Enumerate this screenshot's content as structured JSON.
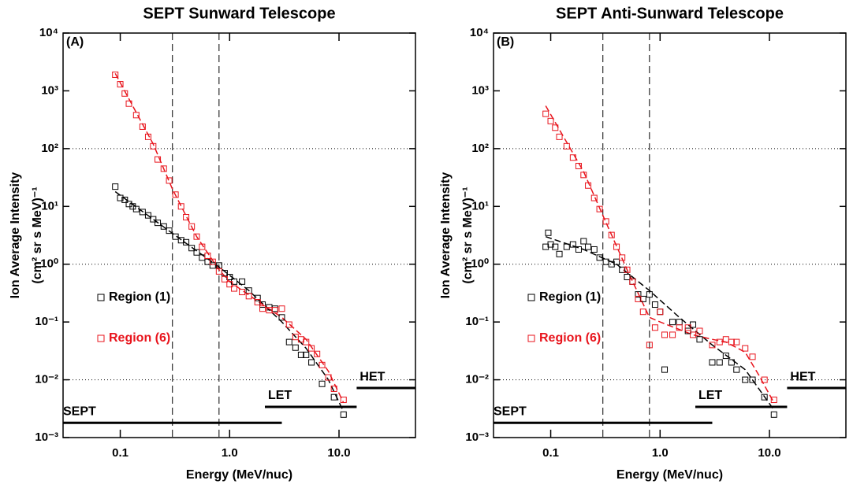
{
  "chart_data": [
    {
      "type": "scatter",
      "title": "SEPT Sunward Telescope",
      "panel_label": "(A)",
      "xlabel": "Energy (MeV/nuc)",
      "ylabel": [
        "Ion Average Intensity",
        "(cm² sr s MeV)⁻¹"
      ],
      "log_x": true,
      "log_y": true,
      "xlim": [
        0.03,
        50
      ],
      "ylim": [
        0.001,
        10000
      ],
      "xticks": [
        0.1,
        {
          "value": 1,
          "label": "1.0"
        },
        {
          "value": 10,
          "label": "10.0"
        }
      ],
      "yticks": [
        {
          "value": 0.001,
          "label": "10⁻³"
        },
        {
          "value": 0.01,
          "label": "10⁻²"
        },
        {
          "value": 0.1,
          "label": "10⁻¹"
        },
        {
          "value": 1,
          "label": "10⁰"
        },
        {
          "value": 10,
          "label": "10¹"
        },
        {
          "value": 100,
          "label": "10²"
        },
        {
          "value": 1000,
          "label": "10³"
        },
        {
          "value": 10000,
          "label": "10⁴"
        }
      ],
      "grid_lines": [
        0.01,
        1,
        100
      ],
      "reference_lines": [
        0.3,
        0.8
      ],
      "ranges": [
        {
          "label": "SEPT",
          "x": [
            0.03,
            3.0
          ],
          "y": 0.0018
        },
        {
          "label": "LET",
          "x": [
            2.1,
            14.5
          ],
          "y": 0.0034
        },
        {
          "label": "HET",
          "x": [
            14.5,
            50
          ],
          "y": 0.0072
        }
      ],
      "series": [
        {
          "name": "Region (1)",
          "color": "#000000",
          "x": [
            0.09,
            0.1,
            0.11,
            0.12,
            0.13,
            0.14,
            0.16,
            0.18,
            0.2,
            0.22,
            0.25,
            0.28,
            0.32,
            0.36,
            0.4,
            0.45,
            0.5,
            0.56,
            0.63,
            0.7,
            0.8,
            0.9,
            1.0,
            1.1,
            1.3,
            1.5,
            1.8,
            2.0,
            2.3,
            2.6,
            3.0,
            3.5,
            4.0,
            4.5,
            5.0,
            5.6,
            7.0,
            9.0,
            11.0
          ],
          "values": [
            22,
            14,
            13,
            11,
            10,
            9,
            8,
            7,
            6,
            5.2,
            4.5,
            3.8,
            3.0,
            2.6,
            2.4,
            1.9,
            1.6,
            1.3,
            1.1,
            0.95,
            0.95,
            0.7,
            0.6,
            0.5,
            0.5,
            0.35,
            0.26,
            0.2,
            0.18,
            0.17,
            0.12,
            0.045,
            0.036,
            0.027,
            0.027,
            0.02,
            0.0085,
            0.005,
            0.0025
          ]
        },
        {
          "name": "Region (6)",
          "color": "#e8141c",
          "x": [
            0.09,
            0.1,
            0.11,
            0.12,
            0.14,
            0.16,
            0.18,
            0.2,
            0.22,
            0.25,
            0.28,
            0.32,
            0.36,
            0.4,
            0.45,
            0.5,
            0.56,
            0.63,
            0.7,
            0.8,
            0.9,
            1.0,
            1.1,
            1.3,
            1.5,
            1.8,
            2.0,
            2.3,
            2.6,
            3.0,
            3.5,
            4.0,
            4.5,
            5.0,
            5.6,
            6.3,
            7.0,
            8.0,
            9.0,
            11.0
          ],
          "values": [
            1900,
            1300,
            900,
            600,
            380,
            240,
            160,
            110,
            65,
            45,
            28,
            16,
            10,
            6.5,
            4.5,
            3,
            2,
            1.4,
            1.1,
            0.75,
            0.55,
            0.45,
            0.38,
            0.33,
            0.28,
            0.22,
            0.17,
            0.16,
            0.16,
            0.17,
            0.09,
            0.055,
            0.05,
            0.045,
            0.035,
            0.028,
            0.018,
            0.011,
            0.007,
            0.0045
          ]
        }
      ],
      "fits": [
        {
          "color": "#000000",
          "x": [
            0.09,
            0.2,
            0.4,
            0.8,
            1.5,
            3,
            5,
            8,
            11
          ],
          "values": [
            18,
            6,
            2.3,
            0.9,
            0.35,
            0.1,
            0.035,
            0.01,
            0.0028
          ]
        },
        {
          "color": "#e8141c",
          "x": [
            0.09,
            0.2,
            0.3,
            0.5,
            0.8,
            1.0,
            2.0,
            3.0,
            5.0,
            8.0,
            11
          ],
          "values": [
            2000,
            120,
            20,
            3.0,
            0.8,
            0.5,
            0.2,
            0.12,
            0.05,
            0.014,
            0.004
          ]
        }
      ]
    },
    {
      "type": "scatter",
      "title": "SEPT Anti-Sunward Telescope",
      "panel_label": "(B)",
      "xlabel": "Energy (MeV/nuc)",
      "ylabel": [
        "Ion Average Intensity",
        "(cm² sr s MeV)⁻¹"
      ],
      "log_x": true,
      "log_y": true,
      "xlim": [
        0.03,
        50
      ],
      "ylim": [
        0.001,
        10000
      ],
      "xticks": [
        0.1,
        {
          "value": 1,
          "label": "1.0"
        },
        {
          "value": 10,
          "label": "10.0"
        }
      ],
      "yticks": [
        {
          "value": 0.001,
          "label": "10⁻³"
        },
        {
          "value": 0.01,
          "label": "10⁻²"
        },
        {
          "value": 0.1,
          "label": "10⁻¹"
        },
        {
          "value": 1,
          "label": "10⁰"
        },
        {
          "value": 10,
          "label": "10¹"
        },
        {
          "value": 100,
          "label": "10²"
        },
        {
          "value": 1000,
          "label": "10³"
        },
        {
          "value": 10000,
          "label": "10⁴"
        }
      ],
      "grid_lines": [
        0.01,
        1,
        100
      ],
      "reference_lines": [
        0.3,
        0.8
      ],
      "ranges": [
        {
          "label": "SEPT",
          "x": [
            0.03,
            3.0
          ],
          "y": 0.0018
        },
        {
          "label": "LET",
          "x": [
            2.1,
            14.5
          ],
          "y": 0.0034
        },
        {
          "label": "HET",
          "x": [
            14.5,
            50
          ],
          "y": 0.0072
        }
      ],
      "series": [
        {
          "name": "Region (1)",
          "color": "#000000",
          "x": [
            0.09,
            0.095,
            0.1,
            0.11,
            0.12,
            0.14,
            0.16,
            0.18,
            0.2,
            0.22,
            0.25,
            0.28,
            0.32,
            0.36,
            0.4,
            0.45,
            0.5,
            0.56,
            0.63,
            0.7,
            0.8,
            0.9,
            1.0,
            1.1,
            1.3,
            1.5,
            1.8,
            2.0,
            2.3,
            3.0,
            3.5,
            4.0,
            4.5,
            5.0,
            6.0,
            7.0,
            9.0,
            11.0
          ],
          "values": [
            2.0,
            3.5,
            2.2,
            2.0,
            1.5,
            2.0,
            2.2,
            1.8,
            2.5,
            2.0,
            1.8,
            1.3,
            1.1,
            1.0,
            1.1,
            0.8,
            0.6,
            0.5,
            0.3,
            0.25,
            0.3,
            0.2,
            0.15,
            0.015,
            0.1,
            0.1,
            0.07,
            0.09,
            0.05,
            0.02,
            0.02,
            0.026,
            0.02,
            0.015,
            0.01,
            0.01,
            0.005,
            0.0025
          ]
        },
        {
          "name": "Region (6)",
          "color": "#e8141c",
          "x": [
            0.09,
            0.1,
            0.11,
            0.12,
            0.14,
            0.16,
            0.18,
            0.2,
            0.22,
            0.25,
            0.28,
            0.32,
            0.36,
            0.4,
            0.45,
            0.5,
            0.56,
            0.63,
            0.7,
            0.8,
            0.9,
            1.0,
            1.1,
            1.3,
            1.5,
            1.8,
            2.0,
            2.3,
            3.0,
            3.5,
            4.0,
            4.5,
            5.0,
            6.0,
            7.0,
            9.0,
            11.0
          ],
          "values": [
            400,
            300,
            230,
            160,
            110,
            70,
            50,
            35,
            23,
            14,
            9,
            5.5,
            3.2,
            2,
            1.3,
            0.8,
            0.5,
            0.25,
            0.15,
            0.04,
            0.08,
            0.15,
            0.06,
            0.06,
            0.08,
            0.08,
            0.06,
            0.07,
            0.04,
            0.045,
            0.05,
            0.045,
            0.045,
            0.035,
            0.025,
            0.01,
            0.0045
          ]
        }
      ],
      "fits": [
        {
          "color": "#000000",
          "x": [
            0.09,
            0.2,
            0.4,
            0.8,
            1.5,
            3,
            6,
            11
          ],
          "values": [
            3.0,
            1.8,
            1.0,
            0.35,
            0.12,
            0.04,
            0.015,
            0.003
          ]
        },
        {
          "color": "#e8141c",
          "x": [
            0.09,
            0.2,
            0.3,
            0.5,
            0.8,
            1.0,
            2.0,
            3,
            4,
            6,
            8,
            11
          ],
          "values": [
            550,
            40,
            7,
            0.8,
            0.12,
            0.1,
            0.06,
            0.05,
            0.045,
            0.03,
            0.012,
            0.004
          ]
        }
      ]
    }
  ]
}
